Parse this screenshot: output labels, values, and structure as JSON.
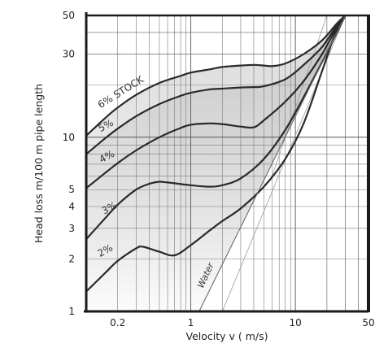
{
  "chart_data": {
    "type": "line",
    "xscale": "log",
    "yscale": "log",
    "xlim": [
      0.1,
      50
    ],
    "ylim": [
      1,
      50
    ],
    "xlabel": "Velocity v ( m/s)",
    "ylabel": "Head loss m/100 m pipe length",
    "x_ticks": [
      {
        "value": 0.2,
        "label": "0.2"
      },
      {
        "value": 1,
        "label": "1"
      },
      {
        "value": 10,
        "label": "10"
      },
      {
        "value": 50,
        "label": "50"
      }
    ],
    "y_ticks": [
      {
        "value": 1,
        "label": "1"
      },
      {
        "value": 2,
        "label": "2"
      },
      {
        "value": 3,
        "label": "3"
      },
      {
        "value": 4,
        "label": "4"
      },
      {
        "value": 5,
        "label": "5"
      },
      {
        "value": 10,
        "label": "10"
      },
      {
        "value": 30,
        "label": "30"
      },
      {
        "value": 50,
        "label": "50"
      }
    ],
    "grid": true,
    "series": [
      {
        "name": "2%",
        "label_at": {
          "x": 0.135,
          "y": 2.05
        },
        "label_angle": -28,
        "points": [
          [
            0.1,
            1.3
          ],
          [
            0.15,
            1.65
          ],
          [
            0.2,
            1.95
          ],
          [
            0.3,
            2.3
          ],
          [
            0.35,
            2.35
          ],
          [
            0.5,
            2.2
          ],
          [
            0.7,
            2.1
          ],
          [
            1,
            2.4
          ],
          [
            1.5,
            2.9
          ],
          [
            2,
            3.3
          ],
          [
            3,
            3.9
          ],
          [
            5,
            5.2
          ],
          [
            8,
            7.5
          ],
          [
            12,
            12
          ],
          [
            18,
            24
          ],
          [
            25,
            42
          ],
          [
            30,
            50
          ]
        ]
      },
      {
        "name": "3%",
        "label_at": {
          "x": 0.148,
          "y": 3.6
        },
        "label_angle": -28,
        "points": [
          [
            0.1,
            2.6
          ],
          [
            0.15,
            3.4
          ],
          [
            0.2,
            4.1
          ],
          [
            0.3,
            5
          ],
          [
            0.4,
            5.4
          ],
          [
            0.5,
            5.55
          ],
          [
            0.6,
            5.5
          ],
          [
            1,
            5.3
          ],
          [
            1.5,
            5.2
          ],
          [
            2,
            5.3
          ],
          [
            3,
            5.8
          ],
          [
            5,
            7.5
          ],
          [
            8,
            11
          ],
          [
            12,
            17
          ],
          [
            18,
            27
          ],
          [
            25,
            40
          ],
          [
            30,
            50
          ]
        ]
      },
      {
        "name": "4%",
        "label_at": {
          "x": 0.14,
          "y": 7.1
        },
        "label_angle": -28,
        "points": [
          [
            0.1,
            5.1
          ],
          [
            0.15,
            6.2
          ],
          [
            0.2,
            7.1
          ],
          [
            0.3,
            8.4
          ],
          [
            0.5,
            10
          ],
          [
            0.8,
            11.3
          ],
          [
            1,
            11.8
          ],
          [
            1.5,
            12
          ],
          [
            2,
            11.9
          ],
          [
            3,
            11.5
          ],
          [
            4,
            11.4
          ],
          [
            5,
            12.5
          ],
          [
            8,
            16
          ],
          [
            12,
            21
          ],
          [
            18,
            30
          ],
          [
            25,
            43
          ],
          [
            30,
            50
          ]
        ]
      },
      {
        "name": "5%",
        "label_at": {
          "x": 0.137,
          "y": 10.7
        },
        "label_angle": -28,
        "points": [
          [
            0.1,
            8
          ],
          [
            0.15,
            9.8
          ],
          [
            0.2,
            11.2
          ],
          [
            0.3,
            13.2
          ],
          [
            0.5,
            15.5
          ],
          [
            0.8,
            17.3
          ],
          [
            1,
            18
          ],
          [
            1.5,
            18.8
          ],
          [
            2,
            19
          ],
          [
            3,
            19.3
          ],
          [
            4,
            19.4
          ],
          [
            5,
            19.6
          ],
          [
            8,
            21.5
          ],
          [
            12,
            26
          ],
          [
            18,
            33
          ],
          [
            25,
            44
          ],
          [
            30,
            50
          ]
        ]
      },
      {
        "name": "6% STOCK",
        "label_at": {
          "x": 0.137,
          "y": 14.6
        },
        "label_angle": -32,
        "points": [
          [
            0.1,
            10.2
          ],
          [
            0.15,
            12.8
          ],
          [
            0.2,
            14.8
          ],
          [
            0.3,
            17.5
          ],
          [
            0.5,
            20.5
          ],
          [
            0.8,
            22.5
          ],
          [
            1,
            23.5
          ],
          [
            1.5,
            24.5
          ],
          [
            2,
            25.3
          ],
          [
            3,
            25.8
          ],
          [
            4,
            26
          ],
          [
            5,
            25.8
          ],
          [
            6,
            25.6
          ],
          [
            8,
            26.5
          ],
          [
            12,
            30
          ],
          [
            18,
            36
          ],
          [
            25,
            45
          ],
          [
            30,
            50
          ]
        ]
      },
      {
        "name": "Water",
        "label_at": {
          "x": 1.3,
          "y": 1.35
        },
        "label_angle": -65,
        "points": [
          [
            1.2,
            1
          ],
          [
            30,
            50
          ]
        ]
      }
    ],
    "reference_lines": [
      {
        "points": [
          [
            2,
            1
          ],
          [
            30,
            50
          ]
        ]
      },
      {
        "points": [
          [
            6,
            6
          ],
          [
            20,
            50
          ]
        ]
      }
    ]
  }
}
